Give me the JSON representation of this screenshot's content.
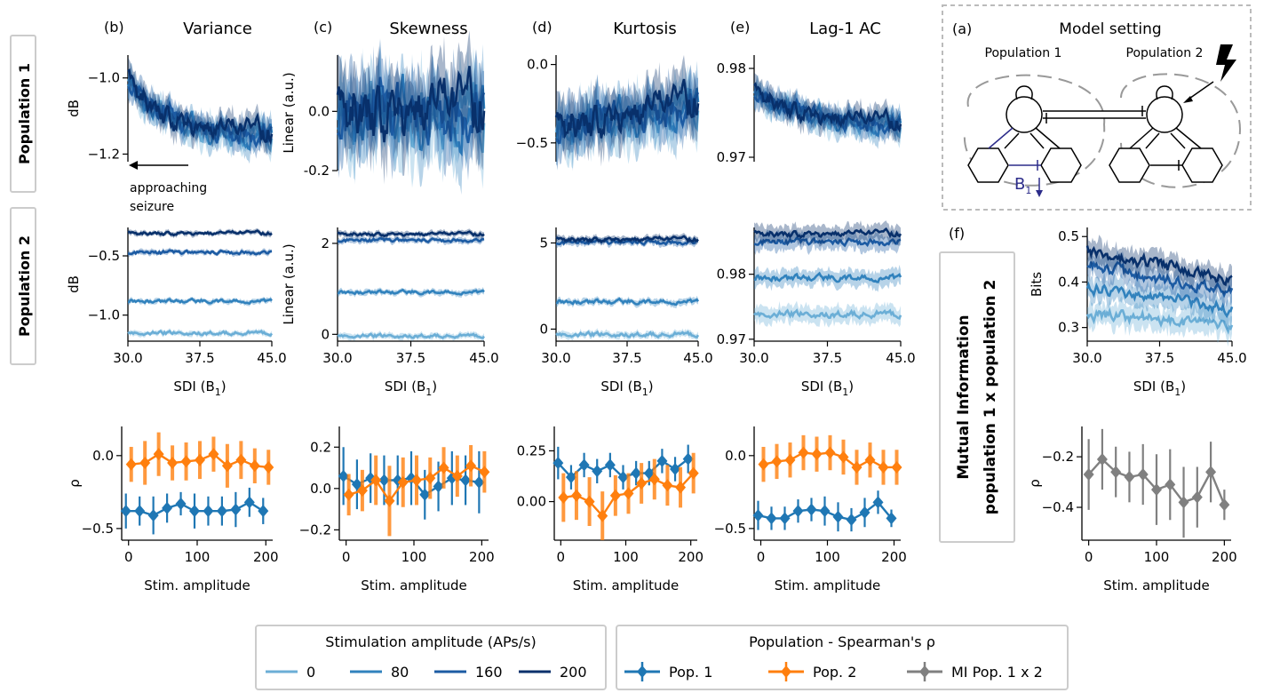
{
  "figure": {
    "row_labels": {
      "pop1": "Population 1",
      "pop2": "Population 2"
    },
    "mi_label_line1": "Mutual Information",
    "mi_label_line2": "population 1 x population 2",
    "annotation": {
      "line1": "approaching",
      "line2": "seizure"
    },
    "model": {
      "panel_letter": "(a)",
      "title": "Model setting",
      "pop1_label": "Population 1",
      "pop2_label": "Population 2",
      "param_label": "B",
      "param_sub": "1"
    },
    "legend_amplitude": {
      "title": "Stimulation amplitude (APs/s)",
      "entries": [
        {
          "label": "0",
          "color": "#6baed6"
        },
        {
          "label": "80",
          "color": "#3182bd"
        },
        {
          "label": "160",
          "color": "#1c5ba3"
        },
        {
          "label": "200",
          "color": "#08306b"
        }
      ]
    },
    "legend_population": {
      "title": "Population - Spearman's ρ",
      "entries": [
        {
          "label": "Pop. 1",
          "color": "#1f77b4"
        },
        {
          "label": "Pop. 2",
          "color": "#ff7f0e"
        },
        {
          "label": "MI Pop. 1 x 2",
          "color": "#808080"
        }
      ]
    }
  },
  "chart_data": [
    {
      "id": "b_pop1",
      "type": "line",
      "panel_letter": "(b)",
      "title": "Variance",
      "ylabel": "dB",
      "xlabel": "",
      "xlim": [
        30,
        45
      ],
      "ylim": [
        -1.22,
        -0.94
      ],
      "yticks": [
        -1.2,
        -1.0
      ],
      "ytick_labels": [
        "−1.2",
        "−1.0"
      ],
      "xticks": [],
      "x": [
        30,
        45
      ],
      "start": -1.0,
      "end": -1.15,
      "amp": 0.024,
      "decay": 0.25,
      "band": 0.03,
      "series": [
        {
          "name": "0",
          "level": -1.15
        },
        {
          "name": "80",
          "level": -1.15
        },
        {
          "name": "160",
          "level": -1.15
        },
        {
          "name": "200",
          "level": -1.15
        }
      ]
    },
    {
      "id": "c_pop1",
      "type": "line",
      "panel_letter": "(c)",
      "title": "Skewness",
      "ylabel": "Linear (a.u.)",
      "xlabel": "",
      "xlim": [
        30,
        45
      ],
      "ylim": [
        -0.2,
        0.19
      ],
      "yticks": [
        -0.2,
        0.0
      ],
      "ytick_labels": [
        "-0.2",
        "0.0"
      ],
      "xticks": [],
      "x": [
        30,
        45
      ],
      "start": 0.0,
      "end": 0.0,
      "amp": 0.08,
      "decay": 0,
      "band": 0.11,
      "series": [
        {
          "name": "0",
          "level": 0.0
        },
        {
          "name": "80",
          "level": 0.0
        },
        {
          "name": "160",
          "level": 0.0
        },
        {
          "name": "200",
          "level": 0.0
        }
      ]
    },
    {
      "id": "d_pop1",
      "type": "line",
      "panel_letter": "(d)",
      "title": "Kurtosis",
      "ylabel": "",
      "xlabel": "",
      "xlim": [
        30,
        45
      ],
      "ylim": [
        -0.62,
        0.06
      ],
      "yticks": [
        -0.5,
        0.0
      ],
      "ytick_labels": [
        "−0.5",
        "0.0"
      ],
      "xticks": [],
      "x": [
        30,
        45
      ],
      "start": -0.4,
      "end": -0.25,
      "amp": 0.09,
      "decay": 0,
      "band": 0.14,
      "series": [
        {
          "name": "0",
          "level": -0.3
        },
        {
          "name": "80",
          "level": -0.3
        },
        {
          "name": "160",
          "level": -0.3
        },
        {
          "name": "200",
          "level": -0.3
        }
      ]
    },
    {
      "id": "e_pop1",
      "type": "line",
      "panel_letter": "(e)",
      "title": "Lag-1 AC",
      "ylabel": "",
      "xlabel": "",
      "xlim": [
        30,
        45
      ],
      "ylim": [
        0.9695,
        0.9815
      ],
      "yticks": [
        0.97,
        0.98
      ],
      "ytick_labels": [
        "0.97",
        "0.98"
      ],
      "xticks": [],
      "x": [
        30,
        45
      ],
      "start": 0.9775,
      "end": 0.9735,
      "amp": 0.0008,
      "decay": 0.35,
      "band": 0.0012,
      "series": [
        {
          "name": "0",
          "level": 0.974
        },
        {
          "name": "80",
          "level": 0.974
        },
        {
          "name": "160",
          "level": 0.974
        },
        {
          "name": "200",
          "level": 0.974
        }
      ]
    },
    {
      "id": "b_pop2",
      "type": "line",
      "ylabel": "dB",
      "xlabel": "SDI (B₁)",
      "xlim": [
        30,
        45
      ],
      "ylim": [
        -1.22,
        -0.26
      ],
      "yticks": [
        -1.0,
        -0.5
      ],
      "ytick_labels": [
        "−1.0",
        "−0.5"
      ],
      "xticks": [
        30,
        37.5,
        45
      ],
      "xtick_labels": [
        "30.0",
        "37.5",
        "45.0"
      ],
      "x": [
        30,
        45
      ],
      "amp": 0.012,
      "band": 0.02,
      "series": [
        {
          "name": "0",
          "level": -1.15
        },
        {
          "name": "80",
          "level": -0.88
        },
        {
          "name": "160",
          "level": -0.47
        },
        {
          "name": "200",
          "level": -0.31
        }
      ]
    },
    {
      "id": "c_pop2",
      "type": "line",
      "ylabel": "Linear (a.u.)",
      "xlabel": "SDI (B₁)",
      "xlim": [
        30,
        45
      ],
      "ylim": [
        -0.15,
        2.35
      ],
      "yticks": [
        0,
        2
      ],
      "ytick_labels": [
        "0",
        "2"
      ],
      "xticks": [
        30,
        37.5,
        45
      ],
      "xtick_labels": [
        "30.0",
        "37.5",
        "45.0"
      ],
      "x": [
        30,
        45
      ],
      "amp": 0.03,
      "band": 0.06,
      "series": [
        {
          "name": "0",
          "level": -0.03
        },
        {
          "name": "80",
          "level": 0.93
        },
        {
          "name": "160",
          "level": 2.07
        },
        {
          "name": "200",
          "level": 2.2
        }
      ]
    },
    {
      "id": "d_pop2",
      "type": "line",
      "ylabel": "",
      "xlabel": "SDI (B₁)",
      "xlim": [
        30,
        45
      ],
      "ylim": [
        -0.7,
        5.9
      ],
      "yticks": [
        0,
        5
      ],
      "ytick_labels": [
        "0",
        "5"
      ],
      "xticks": [
        30,
        37.5,
        45
      ],
      "xtick_labels": [
        "30.0",
        "37.5",
        "45.0"
      ],
      "x": [
        30,
        45
      ],
      "amp": 0.1,
      "band": 0.18,
      "series": [
        {
          "name": "0",
          "level": -0.3
        },
        {
          "name": "80",
          "level": 1.6
        },
        {
          "name": "160",
          "level": 5.05
        },
        {
          "name": "200",
          "level": 5.2
        }
      ]
    },
    {
      "id": "e_pop2",
      "type": "line",
      "ylabel": "",
      "xlabel": "SDI (B₁)",
      "xlim": [
        30,
        45
      ],
      "ylim": [
        0.9697,
        0.9872
      ],
      "yticks": [
        0.97,
        0.98
      ],
      "ytick_labels": [
        "0.97",
        "0.98"
      ],
      "xticks": [
        30,
        37.5,
        45
      ],
      "xtick_labels": [
        "30.0",
        "37.5",
        "45.0"
      ],
      "x": [
        30,
        45
      ],
      "amp": 0.0004,
      "band": 0.0012,
      "series": [
        {
          "name": "0",
          "level": 0.9739
        },
        {
          "name": "80",
          "level": 0.9795
        },
        {
          "name": "160",
          "level": 0.985
        },
        {
          "name": "200",
          "level": 0.9862
        }
      ]
    },
    {
      "id": "f_mi",
      "type": "line",
      "panel_letter": "(f)",
      "ylabel": "Bits",
      "xlabel": "SDI (B₁)",
      "xlim": [
        30,
        45
      ],
      "ylim": [
        0.27,
        0.52
      ],
      "yticks": [
        0.3,
        0.4,
        0.5
      ],
      "ytick_labels": [
        "0.3",
        "0.4",
        "0.5"
      ],
      "xticks": [
        30,
        37.5,
        45
      ],
      "xtick_labels": [
        "30.0",
        "37.5",
        "45.0"
      ],
      "x": [
        30,
        45
      ],
      "amp": 0.01,
      "band": 0.025,
      "series": [
        {
          "name": "0",
          "start": 0.33,
          "end": 0.305
        },
        {
          "name": "80",
          "start": 0.39,
          "end": 0.34
        },
        {
          "name": "160",
          "start": 0.44,
          "end": 0.375
        },
        {
          "name": "200",
          "start": 0.47,
          "end": 0.405
        }
      ]
    },
    {
      "id": "b_rho",
      "type": "line",
      "ylabel": "ρ",
      "xlabel": "Stim. amplitude",
      "xlim": [
        -10,
        210
      ],
      "ylim": [
        -0.58,
        0.2
      ],
      "yticks": [
        -0.5,
        0.0
      ],
      "ytick_labels": [
        "−0.5",
        "0.0"
      ],
      "xticks": [
        0,
        100,
        200
      ],
      "xtick_labels": [
        "0",
        "100",
        "200"
      ],
      "x": [
        0,
        20,
        40,
        60,
        80,
        100,
        120,
        140,
        160,
        180,
        200
      ],
      "series": [
        {
          "name": "Pop. 1",
          "values": [
            -0.38,
            -0.38,
            -0.41,
            -0.36,
            -0.33,
            -0.38,
            -0.38,
            -0.38,
            -0.37,
            -0.32,
            -0.38
          ],
          "err": [
            0.12,
            0.1,
            0.13,
            0.1,
            0.08,
            0.12,
            0.1,
            0.1,
            0.12,
            0.1,
            0.09
          ]
        },
        {
          "name": "Pop. 2",
          "values": [
            -0.06,
            -0.05,
            0.01,
            -0.05,
            -0.04,
            -0.03,
            0.01,
            -0.07,
            -0.03,
            -0.07,
            -0.08
          ],
          "err": [
            0.12,
            0.15,
            0.15,
            0.12,
            0.13,
            0.13,
            0.12,
            0.15,
            0.13,
            0.12,
            0.12
          ]
        }
      ]
    },
    {
      "id": "c_rho",
      "type": "line",
      "ylabel": "",
      "xlabel": "Stim. amplitude",
      "xlim": [
        -10,
        210
      ],
      "ylim": [
        -0.25,
        0.3
      ],
      "yticks": [
        -0.2,
        0.0,
        0.2
      ],
      "ytick_labels": [
        "−0.2",
        "0.0",
        "0.2"
      ],
      "xticks": [
        0,
        100,
        200
      ],
      "xtick_labels": [
        "0",
        "100",
        "200"
      ],
      "x": [
        0,
        20,
        40,
        60,
        80,
        100,
        120,
        140,
        160,
        180,
        200
      ],
      "series": [
        {
          "name": "Pop. 1",
          "values": [
            0.06,
            0.02,
            0.05,
            0.04,
            0.04,
            0.05,
            -0.03,
            0.01,
            0.05,
            0.04,
            0.03
          ],
          "err": [
            0.14,
            0.12,
            0.12,
            0.12,
            0.12,
            0.13,
            0.12,
            0.12,
            0.13,
            0.12,
            0.15
          ]
        },
        {
          "name": "Pop. 2",
          "values": [
            -0.03,
            -0.01,
            0.04,
            -0.06,
            0.03,
            0.04,
            0.05,
            0.1,
            0.06,
            0.11,
            0.08
          ],
          "err": [
            0.1,
            0.1,
            0.12,
            0.17,
            0.12,
            0.12,
            0.1,
            0.1,
            0.1,
            0.1,
            0.1
          ]
        }
      ]
    },
    {
      "id": "d_rho",
      "type": "line",
      "ylabel": "",
      "xlabel": "Stim. amplitude",
      "xlim": [
        -10,
        210
      ],
      "ylim": [
        -0.19,
        0.37
      ],
      "yticks": [
        0.0,
        0.25
      ],
      "ytick_labels": [
        "0.00",
        "0.25"
      ],
      "xticks": [
        0,
        100,
        200
      ],
      "xtick_labels": [
        "0",
        "100",
        "200"
      ],
      "x": [
        0,
        20,
        40,
        60,
        80,
        100,
        120,
        140,
        160,
        180,
        200
      ],
      "series": [
        {
          "name": "Pop. 1",
          "values": [
            0.19,
            0.12,
            0.18,
            0.15,
            0.18,
            0.12,
            0.14,
            0.14,
            0.2,
            0.16,
            0.21
          ],
          "err": [
            0.08,
            0.06,
            0.06,
            0.06,
            0.06,
            0.06,
            0.06,
            0.06,
            0.06,
            0.06,
            0.07
          ]
        },
        {
          "name": "Pop. 2",
          "values": [
            0.02,
            0.03,
            0.0,
            -0.07,
            0.03,
            0.04,
            0.09,
            0.11,
            0.08,
            0.07,
            0.14
          ],
          "err": [
            0.12,
            0.12,
            0.12,
            0.12,
            0.1,
            0.1,
            0.1,
            0.1,
            0.1,
            0.1,
            0.1
          ]
        }
      ]
    },
    {
      "id": "e_rho",
      "type": "line",
      "ylabel": "",
      "xlabel": "Stim. amplitude",
      "xlim": [
        -10,
        210
      ],
      "ylim": [
        -0.58,
        0.2
      ],
      "yticks": [
        -0.5,
        0.0
      ],
      "ytick_labels": [
        "−0.5",
        "0.0"
      ],
      "xticks": [
        0,
        100,
        200
      ],
      "xtick_labels": [
        "0",
        "100",
        "200"
      ],
      "x": [
        0,
        20,
        40,
        60,
        80,
        100,
        120,
        140,
        160,
        180,
        200
      ],
      "series": [
        {
          "name": "Pop. 1",
          "values": [
            -0.41,
            -0.43,
            -0.43,
            -0.38,
            -0.37,
            -0.38,
            -0.42,
            -0.44,
            -0.39,
            -0.32,
            -0.43
          ],
          "err": [
            0.1,
            0.08,
            0.08,
            0.08,
            0.08,
            0.1,
            0.1,
            0.08,
            0.1,
            0.08,
            0.06
          ]
        },
        {
          "name": "Pop. 2",
          "values": [
            -0.06,
            -0.04,
            -0.03,
            0.02,
            0.01,
            0.02,
            -0.01,
            -0.08,
            -0.03,
            -0.08,
            -0.08
          ],
          "err": [
            0.12,
            0.12,
            0.12,
            0.12,
            0.12,
            0.12,
            0.12,
            0.12,
            0.12,
            0.12,
            0.12
          ]
        }
      ]
    },
    {
      "id": "f_rho",
      "type": "line",
      "ylabel": "ρ",
      "xlabel": "Stim. amplitude",
      "xlim": [
        -10,
        210
      ],
      "ylim": [
        -0.53,
        -0.08
      ],
      "yticks": [
        -0.4,
        -0.2
      ],
      "ytick_labels": [
        "−0.4",
        "−0.2"
      ],
      "xticks": [
        0,
        100,
        200
      ],
      "xtick_labels": [
        "0",
        "100",
        "200"
      ],
      "x": [
        0,
        20,
        40,
        60,
        80,
        100,
        120,
        140,
        160,
        180,
        200
      ],
      "series": [
        {
          "name": "MI Pop. 1 x 2",
          "values": [
            -0.27,
            -0.21,
            -0.26,
            -0.28,
            -0.27,
            -0.33,
            -0.31,
            -0.38,
            -0.36,
            -0.26,
            -0.39
          ],
          "err": [
            0.14,
            0.12,
            0.1,
            0.1,
            0.12,
            0.14,
            0.14,
            0.14,
            0.12,
            0.12,
            0.06
          ]
        }
      ]
    }
  ]
}
